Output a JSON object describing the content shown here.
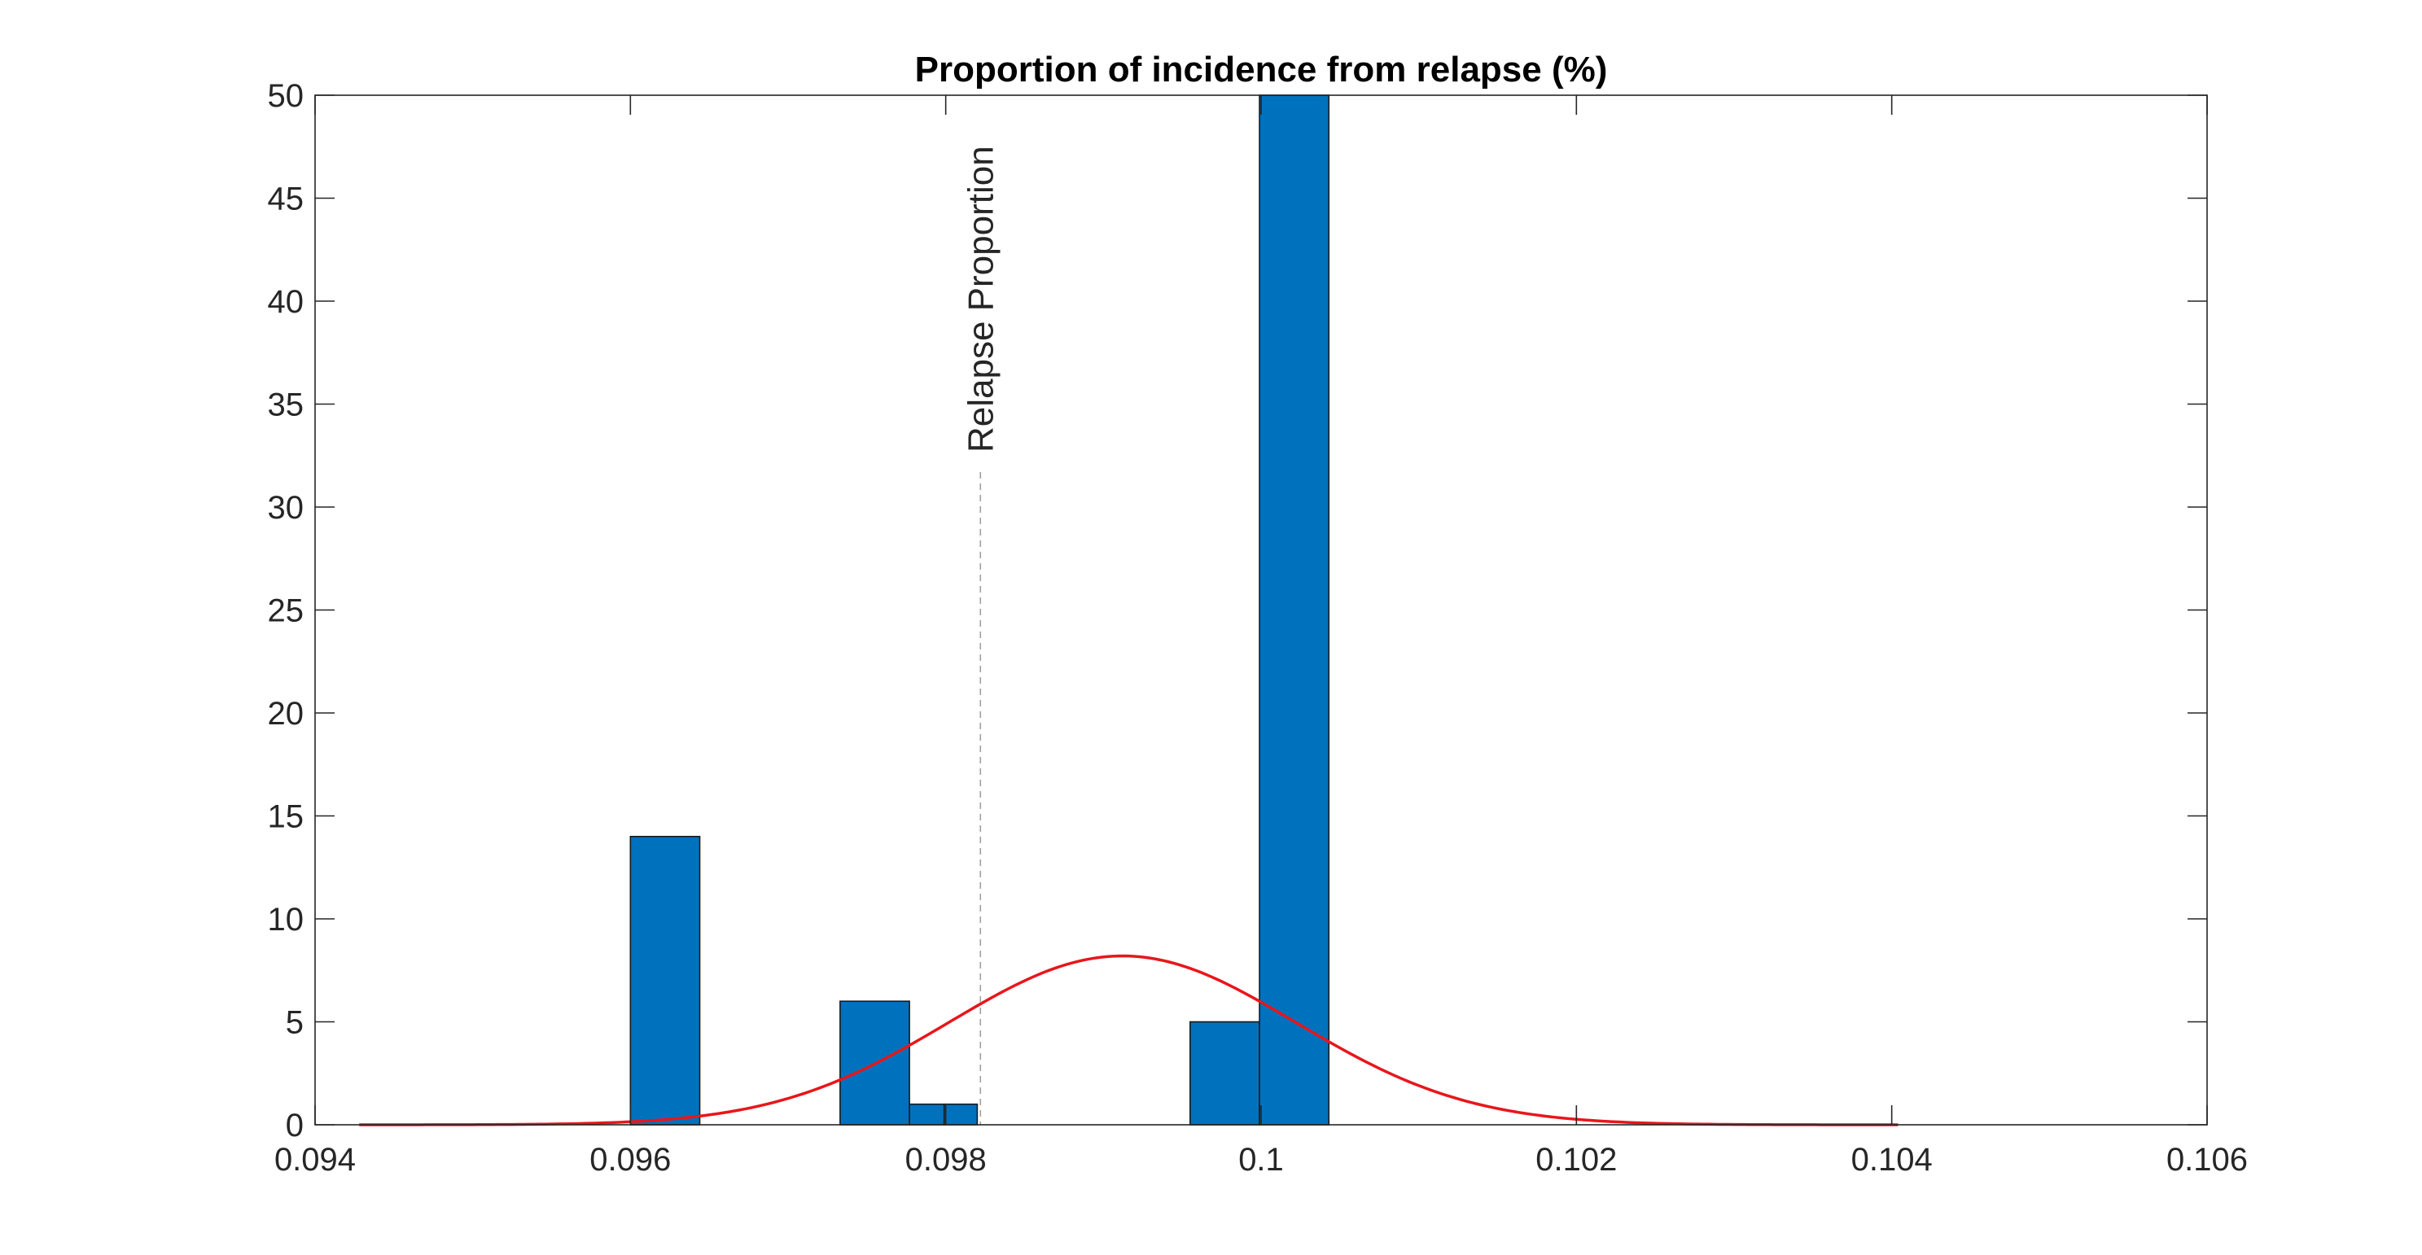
{
  "chart_data": {
    "type": "bar",
    "title": "Proportion of incidence from relapse (%)",
    "xlabel": "",
    "ylabel": "",
    "xlim": [
      0.094,
      0.106
    ],
    "ylim": [
      0,
      50
    ],
    "x_ticks": [
      "0.094",
      "0.096",
      "0.098",
      "0.1",
      "0.102",
      "0.104",
      "0.106"
    ],
    "x_tick_values": [
      0.094,
      0.096,
      0.098,
      0.1,
      0.102,
      0.104,
      0.106
    ],
    "y_ticks": [
      "0",
      "5",
      "10",
      "15",
      "20",
      "25",
      "30",
      "35",
      "40",
      "45",
      "50"
    ],
    "y_tick_values": [
      0,
      5,
      10,
      15,
      20,
      25,
      30,
      35,
      40,
      45,
      50
    ],
    "grid": false,
    "bins": [
      {
        "x0": 0.096,
        "x1": 0.09644,
        "count": 14
      },
      {
        "x0": 0.09733,
        "x1": 0.09777,
        "count": 6
      },
      {
        "x0": 0.09777,
        "x1": 0.09799,
        "count": 1
      },
      {
        "x0": 0.09799,
        "x1": 0.0982,
        "count": 1
      },
      {
        "x0": 0.09955,
        "x1": 0.09999,
        "count": 5
      },
      {
        "x0": 0.09999,
        "x1": 0.10043,
        "count": 50
      }
    ],
    "bar_color": "#0072BD",
    "fit_curve": {
      "type": "normal",
      "mean": 0.09912,
      "sd": 0.0011,
      "peak": 8.2,
      "x_range": [
        0.09428,
        0.10404
      ],
      "color": "#E8161B"
    },
    "reference_line": {
      "x": 0.09822,
      "label": "Relapse Proportion",
      "style": "dashed",
      "color": "#A0A0A0"
    }
  }
}
